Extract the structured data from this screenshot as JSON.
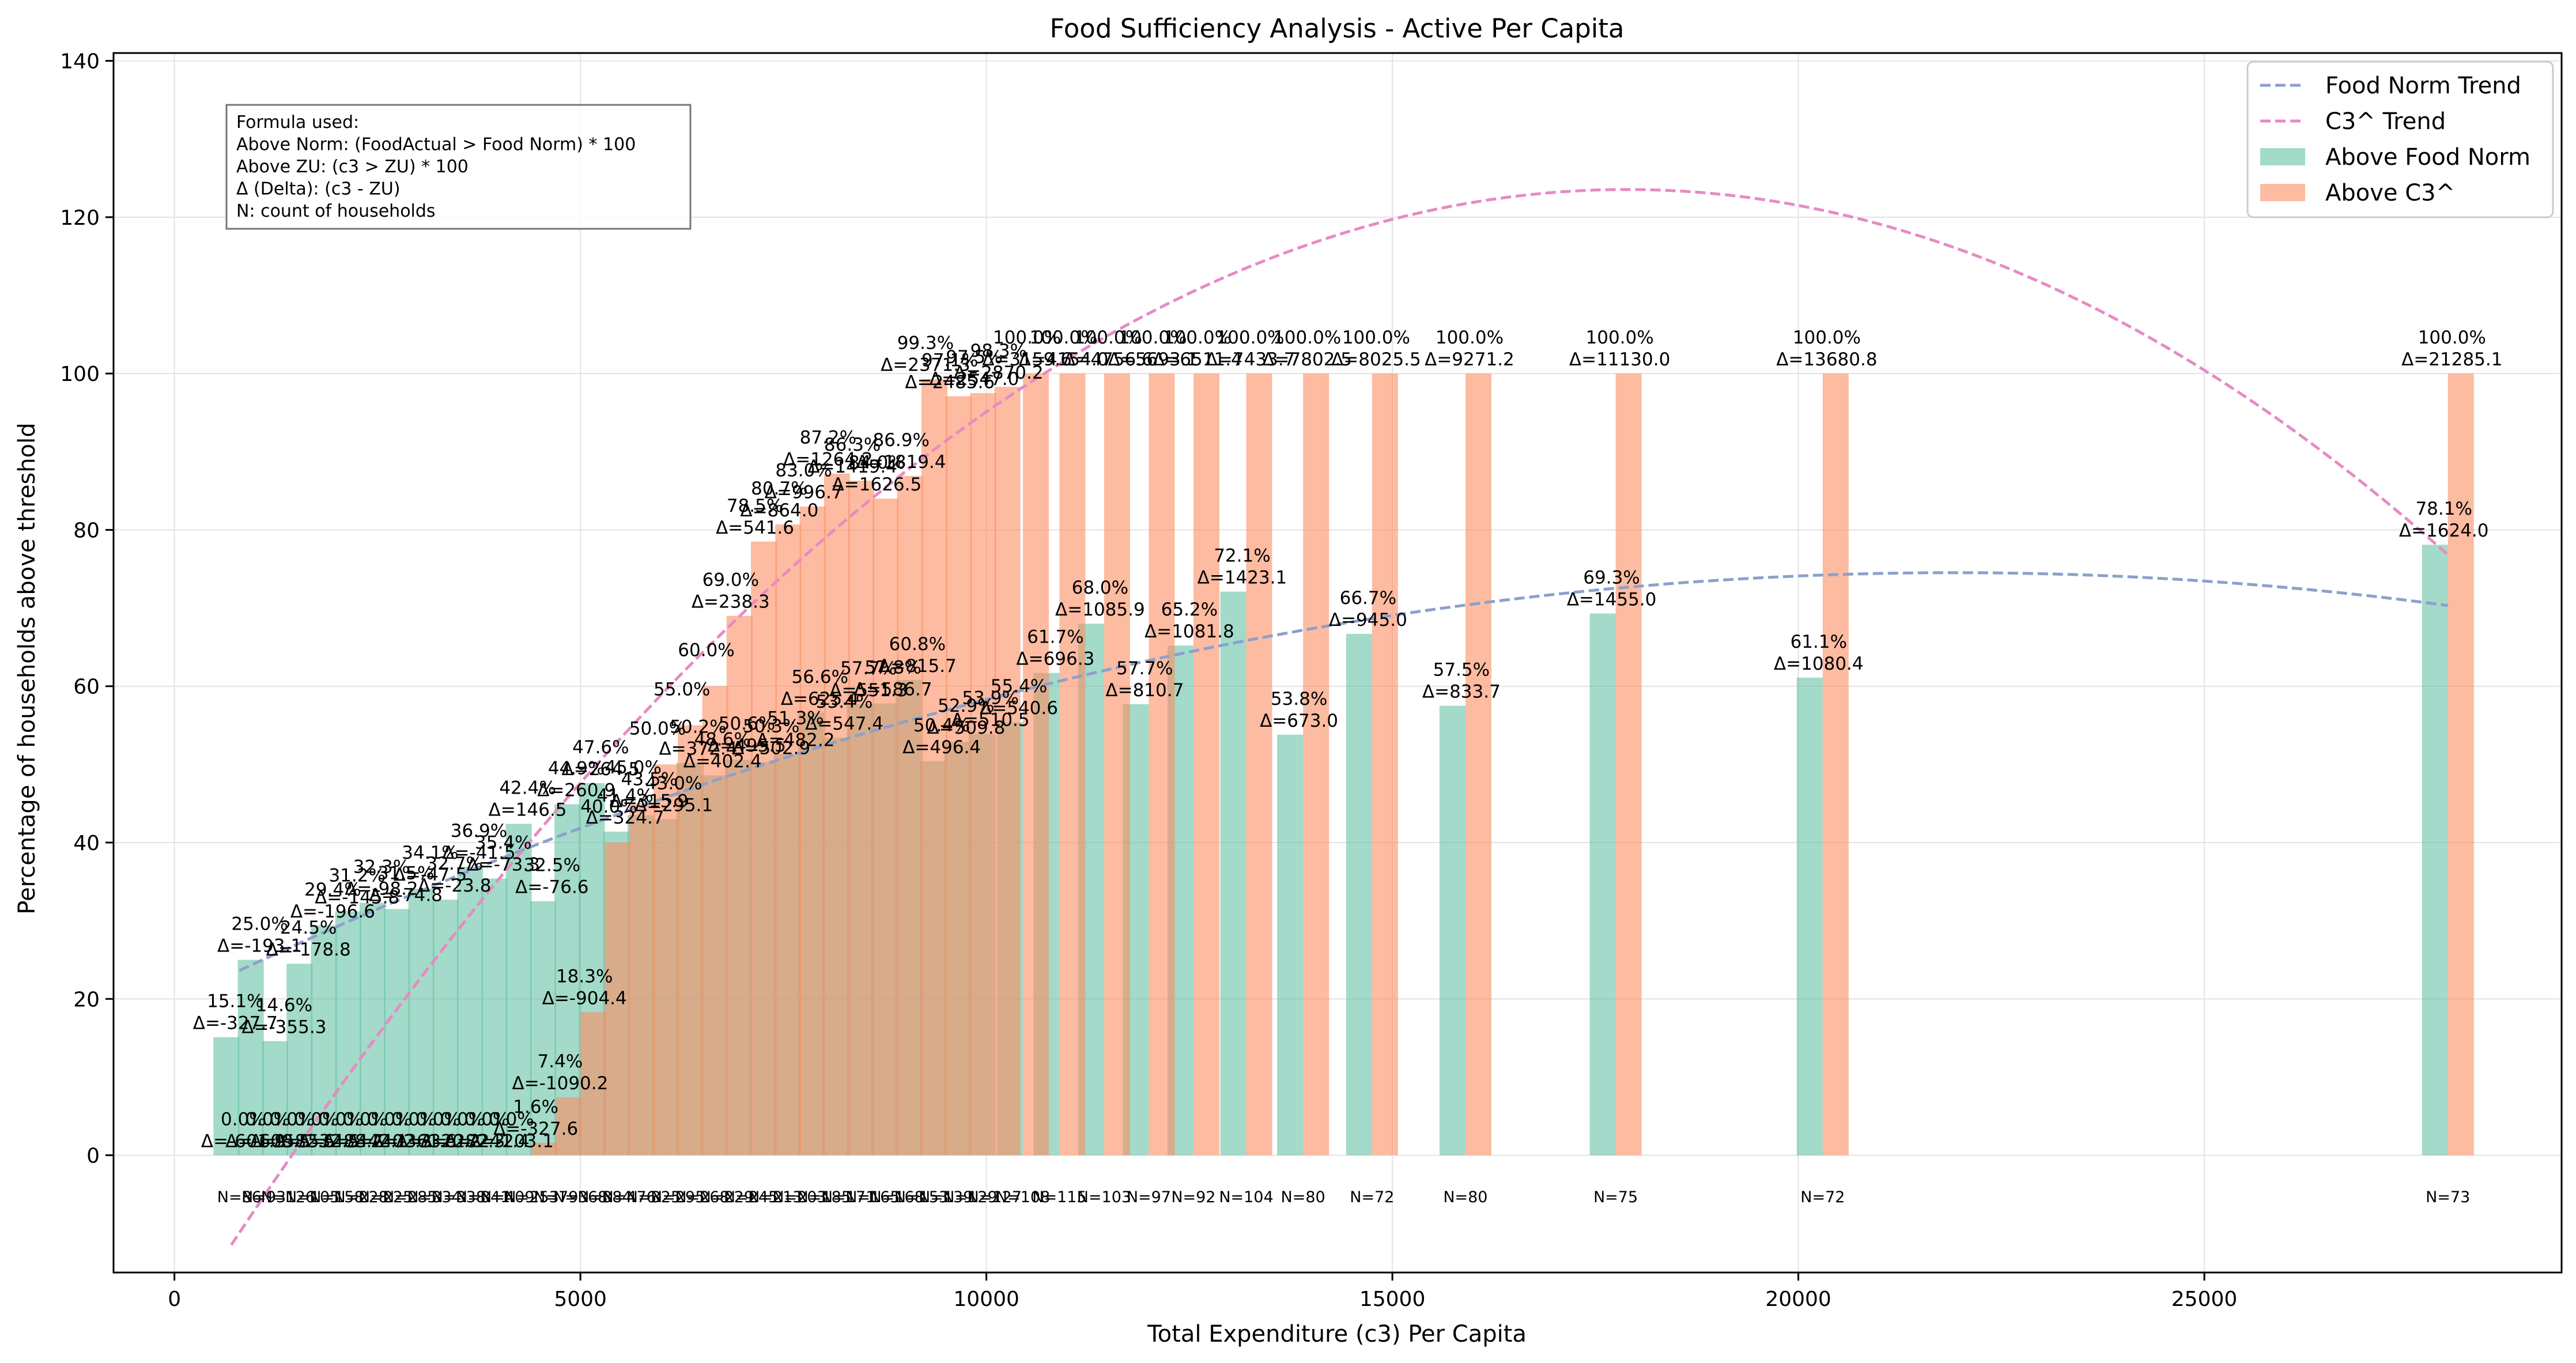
{
  "chart_data": {
    "type": "bar",
    "title": "Food Sufficiency Analysis - Active Per Capita",
    "xlabel": "Total Expenditure (c3) Per Capita",
    "ylabel": "Percentage of households above threshold",
    "xlim": [
      -750,
      29400
    ],
    "ylim": [
      -15,
      141
    ],
    "xticks": [
      0,
      5000,
      10000,
      15000,
      20000,
      25000
    ],
    "yticks": [
      0,
      20,
      40,
      60,
      80,
      100,
      120,
      140
    ],
    "grid": true,
    "legend_position": "top-right",
    "colors": {
      "food_norm_bar": "#66c2a5",
      "c3_bar": "#fc8d62",
      "food_norm_trend": "#8da0cb",
      "c3_trend": "#e78ac3"
    },
    "formula_box": [
      "Formula used:",
      "Above Norm: (FoodActual > Food Norm) * 100",
      "Above ZU: (c3 > ZU) * 100",
      "Δ (Delta): (c3 - ZU)",
      "N: count of households"
    ],
    "series": [
      {
        "name": "Above Food Norm",
        "x": [
          800,
          1100,
          1400,
          1700,
          2000,
          2300,
          2600,
          2900,
          3200,
          3500,
          3800,
          4100,
          4400,
          4700,
          5000,
          5300,
          5600,
          5900,
          6200,
          6500,
          6800,
          7100,
          7400,
          7700,
          8000,
          8300,
          8600,
          8900,
          9200,
          9500,
          9800,
          10100,
          10450,
          10900,
          11450,
          12000,
          12550,
          13200,
          13900,
          14750,
          15900,
          17750,
          20300,
          28000
        ],
        "values": [
          15.1,
          25.0,
          14.6,
          24.5,
          29.4,
          31.2,
          32.3,
          31.5,
          34.1,
          32.7,
          36.9,
          35.4,
          42.4,
          32.5,
          44.9,
          47.6,
          41.4,
          43.5,
          43.0,
          50.2,
          48.6,
          50.6,
          50.3,
          51.3,
          56.6,
          53.4,
          57.7,
          57.8,
          60.8,
          50.4,
          52.9,
          53.9,
          55.4,
          61.7,
          68.0,
          57.7,
          65.2,
          72.1,
          53.8,
          66.7,
          57.5,
          69.3,
          61.1,
          78.1
        ],
        "delta_labels": [
          "Δ=-327.7",
          "Δ=-193.1",
          "Δ=-355.3",
          "Δ=-178.8",
          "Δ=-196.6",
          "Δ=-145.8",
          "Δ=-98.2",
          "Δ=-74.8",
          "Δ=-47.5",
          "Δ=-23.8",
          "Δ=-41.5",
          "Δ=-73.3",
          "Δ=146.5",
          "Δ=-76.6",
          "Δ=260.9",
          "Δ=264.5",
          "Δ=324.7",
          "Δ=315.9",
          "Δ=295.1",
          "Δ=372.4",
          "Δ=402.4",
          "Δ=495.5",
          "Δ=502.9",
          "Δ=482.2",
          "Δ=625.4",
          "Δ=547.4",
          "Δ=551.3",
          "Δ=586.7",
          "Δ=815.7",
          "Δ=496.4",
          "Δ=509.8",
          "Δ=510.5",
          "Δ=540.6",
          "Δ=696.3",
          "Δ=1085.9",
          "Δ=810.7",
          "Δ=1081.8",
          "Δ=1423.1",
          "Δ=673.0",
          "Δ=945.0",
          "Δ=833.7",
          "Δ=1455.0",
          "Δ=1080.4",
          "Δ=1624.0"
        ]
      },
      {
        "name": "Above C3^",
        "x": [
          800,
          1100,
          1400,
          1700,
          2000,
          2300,
          2600,
          2900,
          3200,
          3500,
          3800,
          4100,
          4400,
          4700,
          5000,
          5300,
          5600,
          5900,
          6200,
          6500,
          6800,
          7100,
          7400,
          7700,
          8000,
          8300,
          8600,
          8900,
          9200,
          9500,
          9800,
          10100,
          10450,
          10900,
          11450,
          12000,
          12550,
          13200,
          13900,
          14750,
          15900,
          17750,
          20300,
          28000
        ],
        "values": [
          0.0,
          0.0,
          0.0,
          0.0,
          0.0,
          0.0,
          0.0,
          0.0,
          0.0,
          0.0,
          0.0,
          0.0,
          1.6,
          7.4,
          18.3,
          40.0,
          45.0,
          50.0,
          55.0,
          60.0,
          69.0,
          78.5,
          80.7,
          83.0,
          87.2,
          86.3,
          84.0,
          86.9,
          99.3,
          97.1,
          97.5,
          98.3,
          100.0,
          100.0,
          100.0,
          100.0,
          100.0,
          100.0,
          100.0,
          100.0,
          100.0,
          100.0,
          100.0,
          100.0
        ],
        "delta_labels": [
          "Δ=-601.9",
          "Δ=-609.5",
          "Δ=-582.6",
          "Δ=-532.5",
          "Δ=-488.7",
          "Δ=-442.1",
          "Δ=-402.3",
          "Δ=-361.6",
          "Δ=-320.2",
          "Δ=-282.3",
          "Δ=-241.4",
          "Δ=-203.1",
          "Δ=-327.6",
          "Δ=-1090.2",
          "Δ=-904.4",
          "",
          "",
          "",
          "",
          "",
          "Δ=238.3",
          "Δ=541.6",
          "Δ=864.0",
          "Δ=996.7",
          "Δ=1264.2",
          "Δ=1419.4",
          "Δ=1626.5",
          "Δ=1819.4",
          "Δ=2371.3",
          "Δ=2485.6",
          "Δ=2547.0",
          "Δ=2870.2",
          "Δ=3159.6",
          "Δ=4154.0",
          "Δ=4756.6",
          "Δ=5693.1",
          "Δ=6511.4",
          "Δ=7433.7",
          "Δ=7802.5",
          "Δ=8025.5",
          "Δ=9271.2",
          "Δ=11130.0",
          "Δ=13680.8",
          "Δ=21285.1"
        ]
      }
    ],
    "counts": [
      "N=86",
      "N=93",
      "N=126",
      "N=105",
      "N=158",
      "N=228",
      "N=225",
      "N=285",
      "N=334",
      "N=338",
      "N=341",
      "N=409",
      "N=253",
      "N=79",
      "N=368",
      "N=384",
      "N=476",
      "N=325",
      "N=295",
      "N=268",
      "N=229",
      "N=245",
      "N=213",
      "N=203",
      "N=185",
      "N=171",
      "N=165",
      "N=168",
      "N=153",
      "N=139",
      "N=129",
      "N=127",
      "N=108",
      "N=115",
      "N=103",
      "N=97",
      "N=92",
      "N=104",
      "N=80",
      "N=72",
      "N=80",
      "N=75",
      "N=72",
      "N=73"
    ],
    "trends": [
      {
        "name": "Food Norm Trend",
        "x": [
          800,
          28000
        ],
        "coef": [
          19.7,
          0.005,
          -1.14e-07
        ]
      },
      {
        "name": "C3^ Trend",
        "x": [
          700,
          28000
        ],
        "coef": [
          -22.7,
          0.01635,
          -4.57e-07
        ]
      }
    ]
  }
}
